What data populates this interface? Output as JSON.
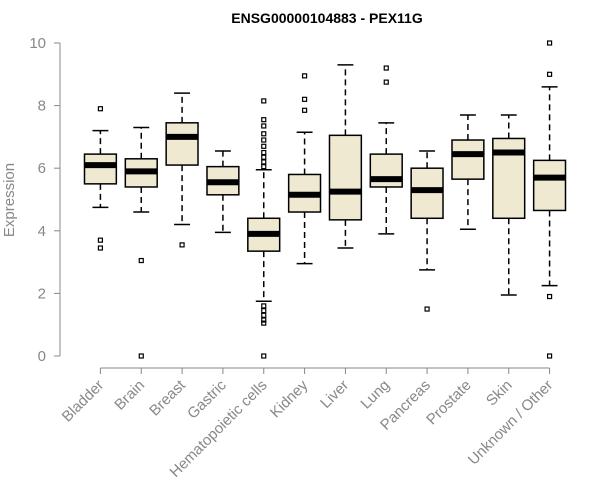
{
  "chart_data": {
    "type": "boxplot",
    "title": "ENSG00000104883 - PEX11G",
    "xlabel": "",
    "ylabel": "Expression",
    "ylim": [
      0,
      10
    ],
    "yticks": [
      "0",
      "2",
      "4",
      "6",
      "8",
      "10"
    ],
    "box_color": "#efe9d2",
    "categories": [
      "Bladder",
      "Brain",
      "Breast",
      "Gastric",
      "Hematopoietic cells",
      "Kidney",
      "Liver",
      "Lung",
      "Pancreas",
      "Prostate",
      "Skin",
      "Unknown / Other"
    ],
    "boxes": [
      {
        "min": 4.75,
        "q1": 5.5,
        "median": 6.1,
        "q3": 6.45,
        "max": 7.2,
        "outliers": [
          7.9,
          3.7,
          3.45
        ]
      },
      {
        "min": 4.6,
        "q1": 5.4,
        "median": 5.9,
        "q3": 6.3,
        "max": 7.3,
        "outliers": [
          3.05,
          0.0
        ]
      },
      {
        "min": 4.2,
        "q1": 6.1,
        "median": 7.0,
        "q3": 7.45,
        "max": 8.4,
        "outliers": [
          3.55
        ]
      },
      {
        "min": 3.95,
        "q1": 5.15,
        "median": 5.55,
        "q3": 6.05,
        "max": 6.55,
        "outliers": []
      },
      {
        "min": 1.75,
        "q1": 3.35,
        "median": 3.9,
        "q3": 4.4,
        "max": 5.95,
        "outliers": [
          8.15,
          7.55,
          7.35,
          7.1,
          6.9,
          6.7,
          6.5,
          6.35,
          6.2,
          6.05,
          1.6,
          1.45,
          1.3,
          1.15,
          1.05,
          0.0
        ]
      },
      {
        "min": 2.95,
        "q1": 4.6,
        "median": 5.15,
        "q3": 5.8,
        "max": 7.15,
        "outliers": [
          8.95,
          8.2,
          7.85
        ]
      },
      {
        "min": 3.45,
        "q1": 4.35,
        "median": 5.25,
        "q3": 7.05,
        "max": 9.3,
        "outliers": []
      },
      {
        "min": 3.9,
        "q1": 5.4,
        "median": 5.65,
        "q3": 6.45,
        "max": 7.45,
        "outliers": [
          9.2,
          8.75
        ]
      },
      {
        "min": 2.75,
        "q1": 4.4,
        "median": 5.3,
        "q3": 6.0,
        "max": 6.55,
        "outliers": [
          1.5
        ]
      },
      {
        "min": 4.05,
        "q1": 5.65,
        "median": 6.45,
        "q3": 6.9,
        "max": 7.7,
        "outliers": []
      },
      {
        "min": 1.95,
        "q1": 4.4,
        "median": 6.5,
        "q3": 6.95,
        "max": 7.7,
        "outliers": []
      },
      {
        "min": 2.25,
        "q1": 4.65,
        "median": 5.7,
        "q3": 6.25,
        "max": 8.6,
        "outliers": [
          10.0,
          9.0,
          1.9,
          0.0
        ]
      }
    ]
  }
}
